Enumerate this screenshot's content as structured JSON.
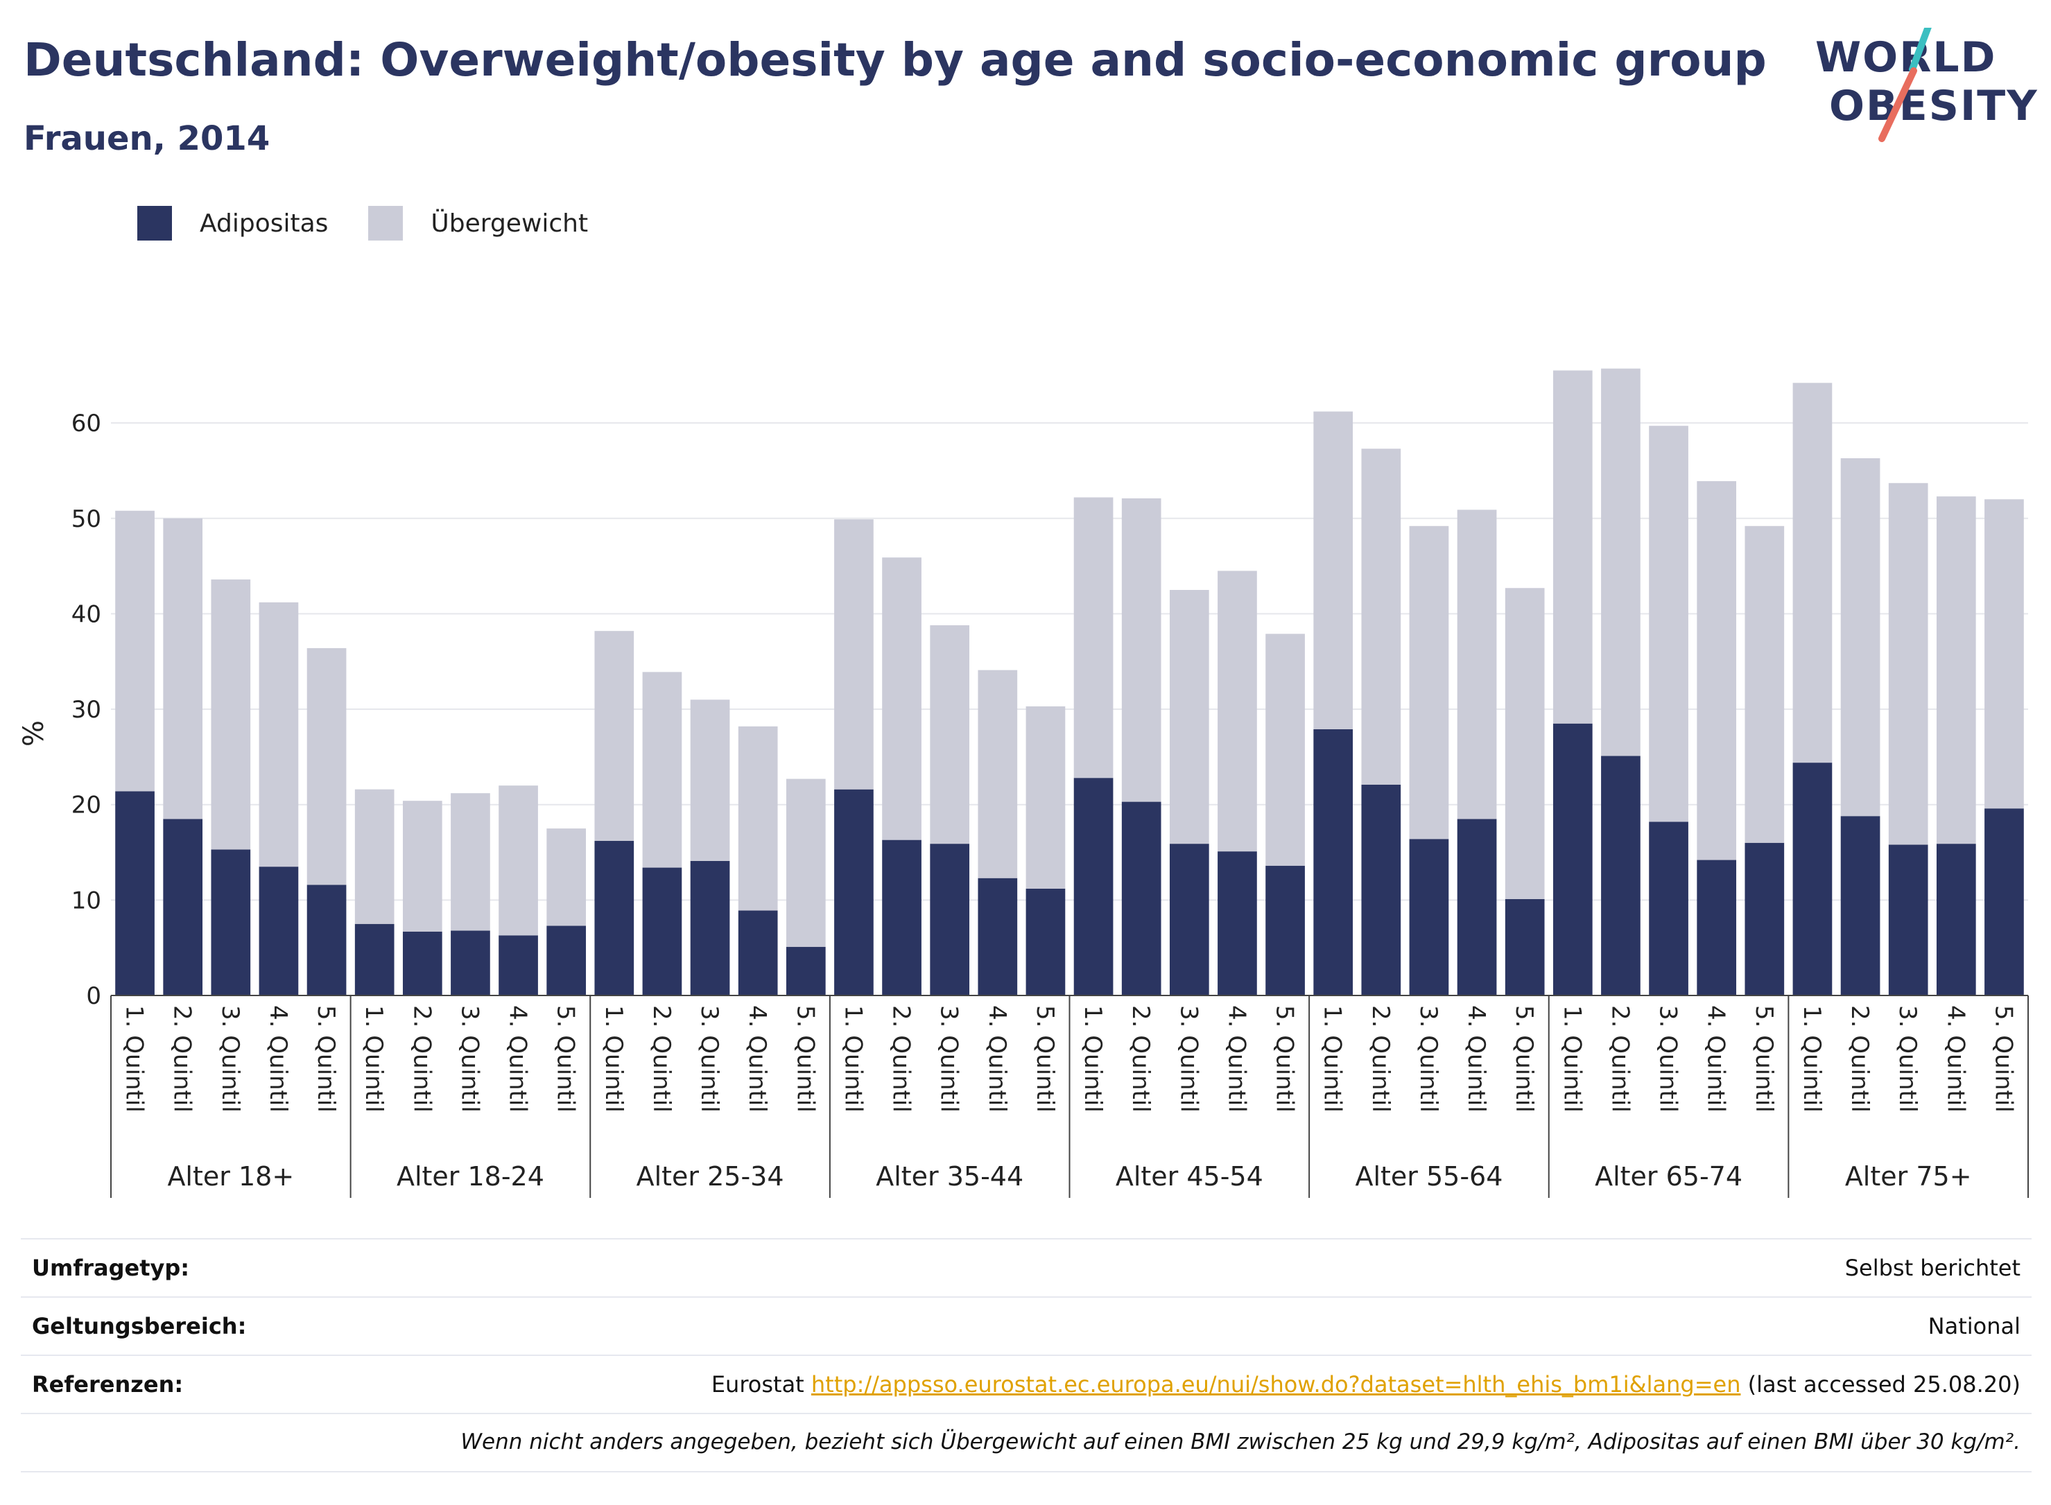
{
  "header": {
    "title": "Deutschland: Overweight/obesity by age and socio-economic group",
    "subtitle": "Frauen, 2014"
  },
  "logo": {
    "line1": "WORLD",
    "line2": "OBESITY",
    "accent_teal": "#3bbfc1",
    "accent_coral": "#e86d5e"
  },
  "legend": {
    "items": [
      {
        "label": "Adipositas",
        "color": "#2b3561"
      },
      {
        "label": "Übergewicht",
        "color": "#cbccd8"
      }
    ]
  },
  "chart_data": {
    "type": "bar",
    "stacked": true,
    "ylabel": "%",
    "ylim": [
      0,
      68
    ],
    "yticks": [
      0,
      10,
      20,
      30,
      40,
      50,
      60
    ],
    "grid": true,
    "legend_position": "top-left",
    "groups": [
      "Alter 18+",
      "Alter 18-24",
      "Alter 25-34",
      "Alter 35-44",
      "Alter 45-54",
      "Alter 55-64",
      "Alter 65-74",
      "Alter 75+"
    ],
    "categories": [
      "1. Quintil",
      "2. Quintil",
      "3. Quintil",
      "4. Quintil",
      "5. Quintil"
    ],
    "series": [
      {
        "name": "Adipositas",
        "color": "#2b3561",
        "values": [
          [
            21.4,
            18.5,
            15.3,
            13.5,
            11.6
          ],
          [
            7.5,
            6.7,
            6.8,
            6.3,
            7.3
          ],
          [
            16.2,
            13.4,
            14.1,
            8.9,
            5.1
          ],
          [
            21.6,
            16.3,
            15.9,
            12.3,
            11.2
          ],
          [
            22.8,
            20.3,
            15.9,
            15.1,
            13.6
          ],
          [
            27.9,
            22.1,
            16.4,
            18.5,
            10.1
          ],
          [
            28.5,
            25.1,
            18.2,
            14.2,
            16.0
          ],
          [
            24.4,
            18.8,
            15.8,
            15.9,
            19.6
          ]
        ]
      },
      {
        "name": "Übergewicht",
        "color": "#cbccd8",
        "values": [
          [
            29.4,
            31.5,
            28.3,
            27.7,
            24.8
          ],
          [
            14.1,
            13.7,
            14.4,
            15.7,
            10.2
          ],
          [
            22.0,
            20.5,
            16.9,
            19.3,
            17.6
          ],
          [
            28.3,
            29.6,
            22.9,
            21.8,
            19.1
          ],
          [
            29.4,
            31.8,
            26.6,
            29.4,
            24.3
          ],
          [
            33.3,
            35.2,
            32.8,
            32.4,
            32.6
          ],
          [
            37.0,
            40.6,
            41.5,
            39.7,
            33.2
          ],
          [
            39.8,
            37.5,
            37.9,
            36.4,
            32.4
          ]
        ]
      }
    ]
  },
  "footer": {
    "rows": [
      {
        "key": "Umfragetyp:",
        "value": "Selbst berichtet"
      },
      {
        "key": "Geltungsbereich:",
        "value": "National"
      },
      {
        "key": "Referenzen:",
        "value_prefix": "Eurostat ",
        "link": "http://appsso.eurostat.ec.europa.eu/nui/show.do?dataset=hlth_ehis_bm1i&lang=en",
        "value_suffix": " (last accessed 25.08.20)"
      }
    ],
    "note": "Wenn nicht anders angegeben, bezieht sich Übergewicht auf einen BMI zwischen 25 kg und 29,9 kg/m², Adipositas auf einen BMI über 30 kg/m²."
  }
}
